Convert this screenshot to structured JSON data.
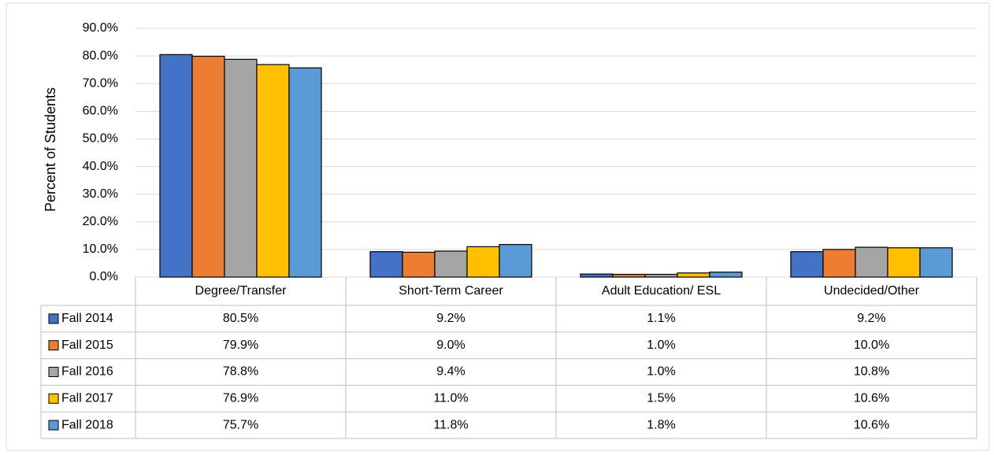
{
  "chart_data": {
    "type": "bar",
    "y_axis_label": "Percent of Students",
    "categories": [
      "Degree/Transfer",
      "Short-Term Career",
      "Adult Education/ ESL",
      "Undecided/Other"
    ],
    "series": [
      {
        "name": "Fall 2014",
        "color": "#4472c4",
        "values": [
          80.5,
          9.2,
          1.1,
          9.2
        ],
        "value_labels": [
          "80.5%",
          "9.2%",
          "1.1%",
          "9.2%"
        ]
      },
      {
        "name": "Fall 2015",
        "color": "#ed7d31",
        "values": [
          79.9,
          9.0,
          1.0,
          10.0
        ],
        "value_labels": [
          "79.9%",
          "9.0%",
          "1.0%",
          "10.0%"
        ]
      },
      {
        "name": "Fall 2016",
        "color": "#a5a5a5",
        "values": [
          78.8,
          9.4,
          1.0,
          10.8
        ],
        "value_labels": [
          "78.8%",
          "9.4%",
          "1.0%",
          "10.8%"
        ]
      },
      {
        "name": "Fall 2017",
        "color": "#ffc000",
        "values": [
          76.9,
          11.0,
          1.5,
          10.6
        ],
        "value_labels": [
          "76.9%",
          "11.0%",
          "1.5%",
          "10.6%"
        ]
      },
      {
        "name": "Fall 2018",
        "color": "#5b9bd5",
        "values": [
          75.7,
          11.8,
          1.8,
          10.6
        ],
        "value_labels": [
          "75.7%",
          "11.8%",
          "1.8%",
          "10.6%"
        ]
      }
    ],
    "ylim": [
      0,
      90
    ],
    "yticks": [
      {
        "value": 0,
        "label": "0.0%"
      },
      {
        "value": 10,
        "label": "10.0%"
      },
      {
        "value": 20,
        "label": "20.0%"
      },
      {
        "value": 30,
        "label": "30.0%"
      },
      {
        "value": 40,
        "label": "40.0%"
      },
      {
        "value": 50,
        "label": "50.0%"
      },
      {
        "value": 60,
        "label": "60.0%"
      },
      {
        "value": 70,
        "label": "70.0%"
      },
      {
        "value": 80,
        "label": "80.0%"
      },
      {
        "value": 90,
        "label": "90.0%"
      }
    ],
    "grid": true
  }
}
